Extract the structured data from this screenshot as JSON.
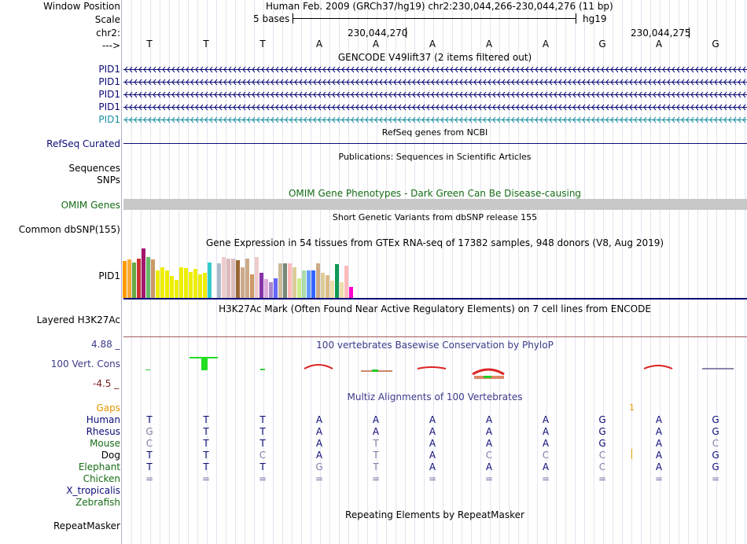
{
  "ruler": {
    "window_position_label": "Window Position",
    "window_position_value": "Human Feb. 2009 (GRCh37/hg19)   chr2:230,044,266-230,044,276 (11 bp)",
    "scale_label": "Scale",
    "scale_text": "5 bases",
    "assembly": "hg19",
    "chrom_label": "chr2:",
    "pos1": "230,044,270",
    "pos2": "230,044,275",
    "strand_label": "--->",
    "bases": [
      "T",
      "T",
      "T",
      "A",
      "A",
      "A",
      "A",
      "A",
      "G",
      "A",
      "G"
    ]
  },
  "gencode": {
    "title": "GENCODE V49lift37 (2 items filtered out)",
    "items": [
      {
        "label": "PID1",
        "color": "#0c0c78"
      },
      {
        "label": "PID1",
        "color": "#0c0c78"
      },
      {
        "label": "PID1",
        "color": "#0c0c78"
      },
      {
        "label": "PID1",
        "color": "#0c0c78"
      },
      {
        "label": "PID1",
        "color": "#1a8fa0"
      }
    ]
  },
  "refseq": {
    "title": "RefSeq genes from NCBI",
    "label": "RefSeq Curated",
    "color": "#0c0c78"
  },
  "publications": {
    "title": "Publications: Sequences in Scientific Articles",
    "label": "Sequences"
  },
  "snps_label": "SNPs",
  "omim": {
    "title": "OMIM Gene Phenotypes - Dark Green Can Be Disease-causing",
    "label": "OMIM Genes",
    "color": "#156d15"
  },
  "dbsnp": {
    "title": "Short Genetic Variants from dbSNP release 155",
    "label": "Common dbSNP(155)"
  },
  "gtex": {
    "title": "Gene Expression in 54 tissues from GTEx RNA-seq of 17382 samples, 948 donors (V8, Aug 2019)",
    "label": "PID1",
    "bars": [
      {
        "v": 0.75,
        "c": "#ff9900"
      },
      {
        "v": 0.78,
        "c": "#ffaa33"
      },
      {
        "v": 0.72,
        "c": "#66aa44"
      },
      {
        "v": 0.8,
        "c": "#cc3333"
      },
      {
        "v": 1.0,
        "c": "#a3176b"
      },
      {
        "v": 0.82,
        "c": "#66bb66"
      },
      {
        "v": 0.78,
        "c": "#cc9966"
      },
      {
        "v": 0.55,
        "c": "#eeee00"
      },
      {
        "v": 0.62,
        "c": "#eeee00"
      },
      {
        "v": 0.55,
        "c": "#eeee00"
      },
      {
        "v": 0.45,
        "c": "#eeee00"
      },
      {
        "v": 0.36,
        "c": "#eeee00"
      },
      {
        "v": 0.62,
        "c": "#eeee00"
      },
      {
        "v": 0.6,
        "c": "#eeee00"
      },
      {
        "v": 0.52,
        "c": "#eeee00"
      },
      {
        "v": 0.58,
        "c": "#eeee00"
      },
      {
        "v": 0.48,
        "c": "#eeee00"
      },
      {
        "v": 0.5,
        "c": "#eeee00"
      },
      {
        "v": 0.72,
        "c": "#33cccc"
      },
      {
        "v": 0.02,
        "c": "#ffffff"
      },
      {
        "v": 0.7,
        "c": "#aabbcc"
      },
      {
        "v": 0.82,
        "c": "#eecccc"
      },
      {
        "v": 0.8,
        "c": "#ddbbbb"
      },
      {
        "v": 0.8,
        "c": "#ddbbbb"
      },
      {
        "v": 0.76,
        "c": "#996633"
      },
      {
        "v": 0.62,
        "c": "#ccaa88"
      },
      {
        "v": 0.8,
        "c": "#ccaa88"
      },
      {
        "v": 0.48,
        "c": "#cc9966"
      },
      {
        "v": 0.82,
        "c": "#eecccc"
      },
      {
        "v": 0.5,
        "c": "#8833aa"
      },
      {
        "v": 0.38,
        "c": "#ddaadd"
      },
      {
        "v": 0.32,
        "c": "#aa88cc"
      },
      {
        "v": 0.4,
        "c": "#6666ff"
      },
      {
        "v": 0.7,
        "c": "#ccbb99"
      },
      {
        "v": 0.7,
        "c": "#778877"
      },
      {
        "v": 0.7,
        "c": "#ffbbbb"
      },
      {
        "v": 0.62,
        "c": "#ddcc99"
      },
      {
        "v": 0.4,
        "c": "#ccee88"
      },
      {
        "v": 0.55,
        "c": "#aaddaa"
      },
      {
        "v": 0.55,
        "c": "#6699ff"
      },
      {
        "v": 0.56,
        "c": "#3366ff"
      },
      {
        "v": 0.7,
        "c": "#ccaa88"
      },
      {
        "v": 0.5,
        "c": "#ddcc99"
      },
      {
        "v": 0.46,
        "c": "#ddbb88"
      },
      {
        "v": 0.35,
        "c": "#eeddaa"
      },
      {
        "v": 0.68,
        "c": "#119955"
      },
      {
        "v": 0.32,
        "c": "#eeddaa"
      },
      {
        "v": 0.65,
        "c": "#ffbbbb"
      },
      {
        "v": 0.22,
        "c": "#ff00cc"
      }
    ]
  },
  "h3k27ac": {
    "title": "H3K27Ac Mark (Often Found Near Active Regulatory Elements) on 7 cell lines from ENCODE",
    "label": "Layered H3K27Ac"
  },
  "phylop": {
    "title": "100 vertebrates Basewise Conservation by PhyloP",
    "label": "100 Vert. Cons",
    "max_label": "4.88 _",
    "min_label": "-4.5 _"
  },
  "multiz": {
    "title": "Multiz Alignments of 100 Vertebrates",
    "gaps_label": "Gaps",
    "gap_mark": "1",
    "species": [
      {
        "name": "Human",
        "color": "#0c0c78",
        "bases": [
          "T",
          "T",
          "T",
          "A",
          "A",
          "A",
          "A",
          "A",
          "G",
          "A",
          "G"
        ]
      },
      {
        "name": "Rhesus",
        "color": "#0c0c78",
        "bases": [
          "G",
          "T",
          "T",
          "A",
          "A",
          "A",
          "A",
          "A",
          "G",
          "A",
          "G"
        ]
      },
      {
        "name": "Mouse",
        "color": "#156d15",
        "bases": [
          "C",
          "T",
          "T",
          "A",
          "T",
          "A",
          "A",
          "A",
          "G",
          "A",
          "C"
        ]
      },
      {
        "name": "Dog",
        "color": "#000000",
        "bases": [
          "T",
          "T",
          "C",
          "A",
          "T",
          "A",
          "C",
          "C",
          "C",
          "A",
          "G"
        ]
      },
      {
        "name": "Elephant",
        "color": "#156d15",
        "bases": [
          "T",
          "T",
          "T",
          "G",
          "T",
          "A",
          "A",
          "A",
          "C",
          "A",
          "G"
        ]
      },
      {
        "name": "Chicken",
        "color": "#156d15",
        "bases": [
          "=",
          "=",
          "=",
          "=",
          "=",
          "=",
          "=",
          "=",
          "=",
          "=",
          "="
        ]
      },
      {
        "name": "X_tropicalis",
        "color": "#0c0c78",
        "bases": []
      },
      {
        "name": "Zebrafish",
        "color": "#156d15",
        "bases": []
      }
    ]
  },
  "repeatmasker": {
    "title": "Repeating Elements by RepeatMasker",
    "label": "RepeatMasker"
  }
}
